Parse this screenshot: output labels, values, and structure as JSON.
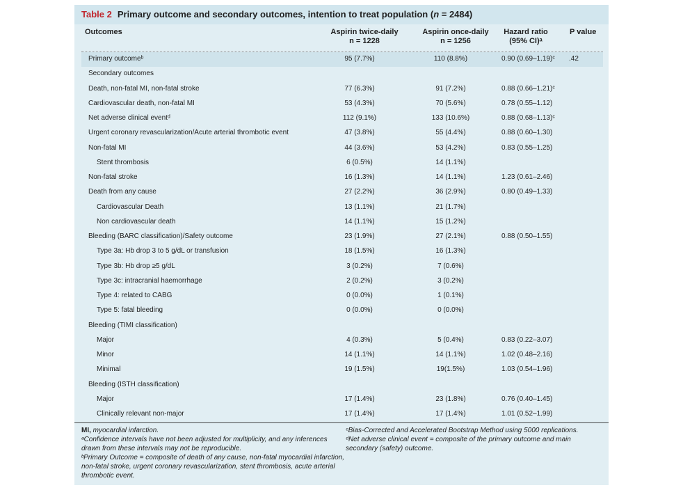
{
  "title": {
    "number": "Table 2",
    "text_before_n": "Primary outcome and secondary outcomes, intention to treat population (",
    "n_label": "n",
    "text_after_n": " = 2484)"
  },
  "headers": {
    "outcomes": "Outcomes",
    "arm_a": "Aspirin twice-daily",
    "arm_a_n": "n = 1228",
    "arm_b": "Aspirin once-daily",
    "arm_b_n": "n = 1256",
    "hr": "Hazard ratio",
    "hr_ci": "(95% CI)ᵃ",
    "p": "P value"
  },
  "rows": [
    {
      "label": "Primary outcomeᵇ",
      "a": "95 (7.7%)",
      "b": "110 (8.8%)",
      "hr": "0.90 (0.69–1.19)ᶜ",
      "p": ".42"
    },
    {
      "label": "Secondary outcomes",
      "a": "",
      "b": "",
      "hr": "",
      "p": ""
    },
    {
      "label": "Death, non-fatal MI, non-fatal stroke",
      "a": "77 (6.3%)",
      "b": "91 (7.2%)",
      "hr": "0.88 (0.66–1.21)ᶜ",
      "p": ""
    },
    {
      "label": "Cardiovascular death, non-fatal MI",
      "a": "53 (4.3%)",
      "b": "70 (5.6%)",
      "hr": "0.78 (0.55–1.12)",
      "p": ""
    },
    {
      "label": "Net adverse clinical eventᵈ",
      "a": "112 (9.1%)",
      "b": "133 (10.6%)",
      "hr": "0.88 (0.68–1.13)ᶜ",
      "p": ""
    },
    {
      "label": "Urgent coronary revascularization/Acute arterial thrombotic event",
      "a": "47 (3.8%)",
      "b": "55 (4.4%)",
      "hr": "0.88 (0.60–1.30)",
      "p": ""
    },
    {
      "label": "Non-fatal MI",
      "a": "44 (3.6%)",
      "b": "53 (4.2%)",
      "hr": "0.83 (0.55–1.25)",
      "p": ""
    },
    {
      "label": "Stent thrombosis",
      "a": "6 (0.5%)",
      "b": "14 (1.1%)",
      "hr": "",
      "p": ""
    },
    {
      "label": "Non-fatal stroke",
      "a": "16 (1.3%)",
      "b": "14 (1.1%)",
      "hr": "1.23 (0.61–2.46)",
      "p": ""
    },
    {
      "label": "Death from any cause",
      "a": "27 (2.2%)",
      "b": "36 (2.9%)",
      "hr": "0.80 (0.49–1.33)",
      "p": ""
    },
    {
      "label": "Cardiovascular Death",
      "a": "13 (1.1%)",
      "b": "21 (1.7%)",
      "hr": "",
      "p": ""
    },
    {
      "label": "Non cardiovascular death",
      "a": "14 (1.1%)",
      "b": "15 (1.2%)",
      "hr": "",
      "p": ""
    },
    {
      "label": "Bleeding (BARC classification)/Safety outcome",
      "a": "23 (1.9%)",
      "b": "27 (2.1%)",
      "hr": "0.88 (0.50–1.55)",
      "p": ""
    },
    {
      "label": "Type 3a: Hb drop 3 to 5 g/dL or transfusion",
      "a": "18 (1.5%)",
      "b": "16 (1.3%)",
      "hr": "",
      "p": ""
    },
    {
      "label": "Type 3b: Hb drop ≥5 g/dL",
      "a": "3 (0.2%)",
      "b": "7 (0.6%)",
      "hr": "",
      "p": ""
    },
    {
      "label": "Type 3c: intracranial haemorrhage",
      "a": "2 (0.2%)",
      "b": "3 (0.2%)",
      "hr": "",
      "p": ""
    },
    {
      "label": "Type 4: related to CABG",
      "a": "0 (0.0%)",
      "b": "1 (0.1%)",
      "hr": "",
      "p": ""
    },
    {
      "label": "Type 5: fatal bleeding",
      "a": "0 (0.0%)",
      "b": "0 (0.0%)",
      "hr": "",
      "p": ""
    },
    {
      "label": "Bleeding (TIMI classification)",
      "a": "",
      "b": "",
      "hr": "",
      "p": ""
    },
    {
      "label": "Major",
      "a": "4 (0.3%)",
      "b": "5 (0.4%)",
      "hr": "0.83 (0.22–3.07)",
      "p": ""
    },
    {
      "label": "Minor",
      "a": "14 (1.1%)",
      "b": "14 (1.1%)",
      "hr": "1.02 (0.48–2.16)",
      "p": ""
    },
    {
      "label": "Minimal",
      "a": "19 (1.5%)",
      "b": "19(1.5%)",
      "hr": "1.03 (0.54–1.96)",
      "p": ""
    },
    {
      "label": "Bleeding (ISTH classification)",
      "a": "",
      "b": "",
      "hr": "",
      "p": ""
    },
    {
      "label": "Major",
      "a": "17 (1.4%)",
      "b": "23 (1.8%)",
      "hr": "0.76 (0.40–1.45)",
      "p": ""
    },
    {
      "label": "Clinically relevant non-major",
      "a": "17 (1.4%)",
      "b": "17 (1.4%)",
      "hr": "1.01 (0.52–1.99)",
      "p": ""
    }
  ],
  "footnotes": {
    "mi_abbr": "MI,",
    "mi_def": " myocardial infarction.",
    "a": "ᵃConfidence intervals have not been adjusted for multiplicity, and any inferences drawn from these intervals may not be reproducible.",
    "b": "ᵇPrimary Outcome = composite of death of any cause, non-fatal myocardial infarction, non-fatal stroke, urgent coronary revascularization, stent thrombosis, acute arterial thrombotic event.",
    "c": "ᶜBias-Corrected and Accelerated Bootstrap Method using 5000 replications.",
    "d": "ᵈNet adverse clinical event = composite of the primary outcome and main secondary (safety) outcome."
  },
  "colors": {
    "table_background": "#e1eef3",
    "title_bar": "#d2e6ee",
    "highlight_row": "#cfe3eb",
    "table_number": "#c0262d"
  }
}
